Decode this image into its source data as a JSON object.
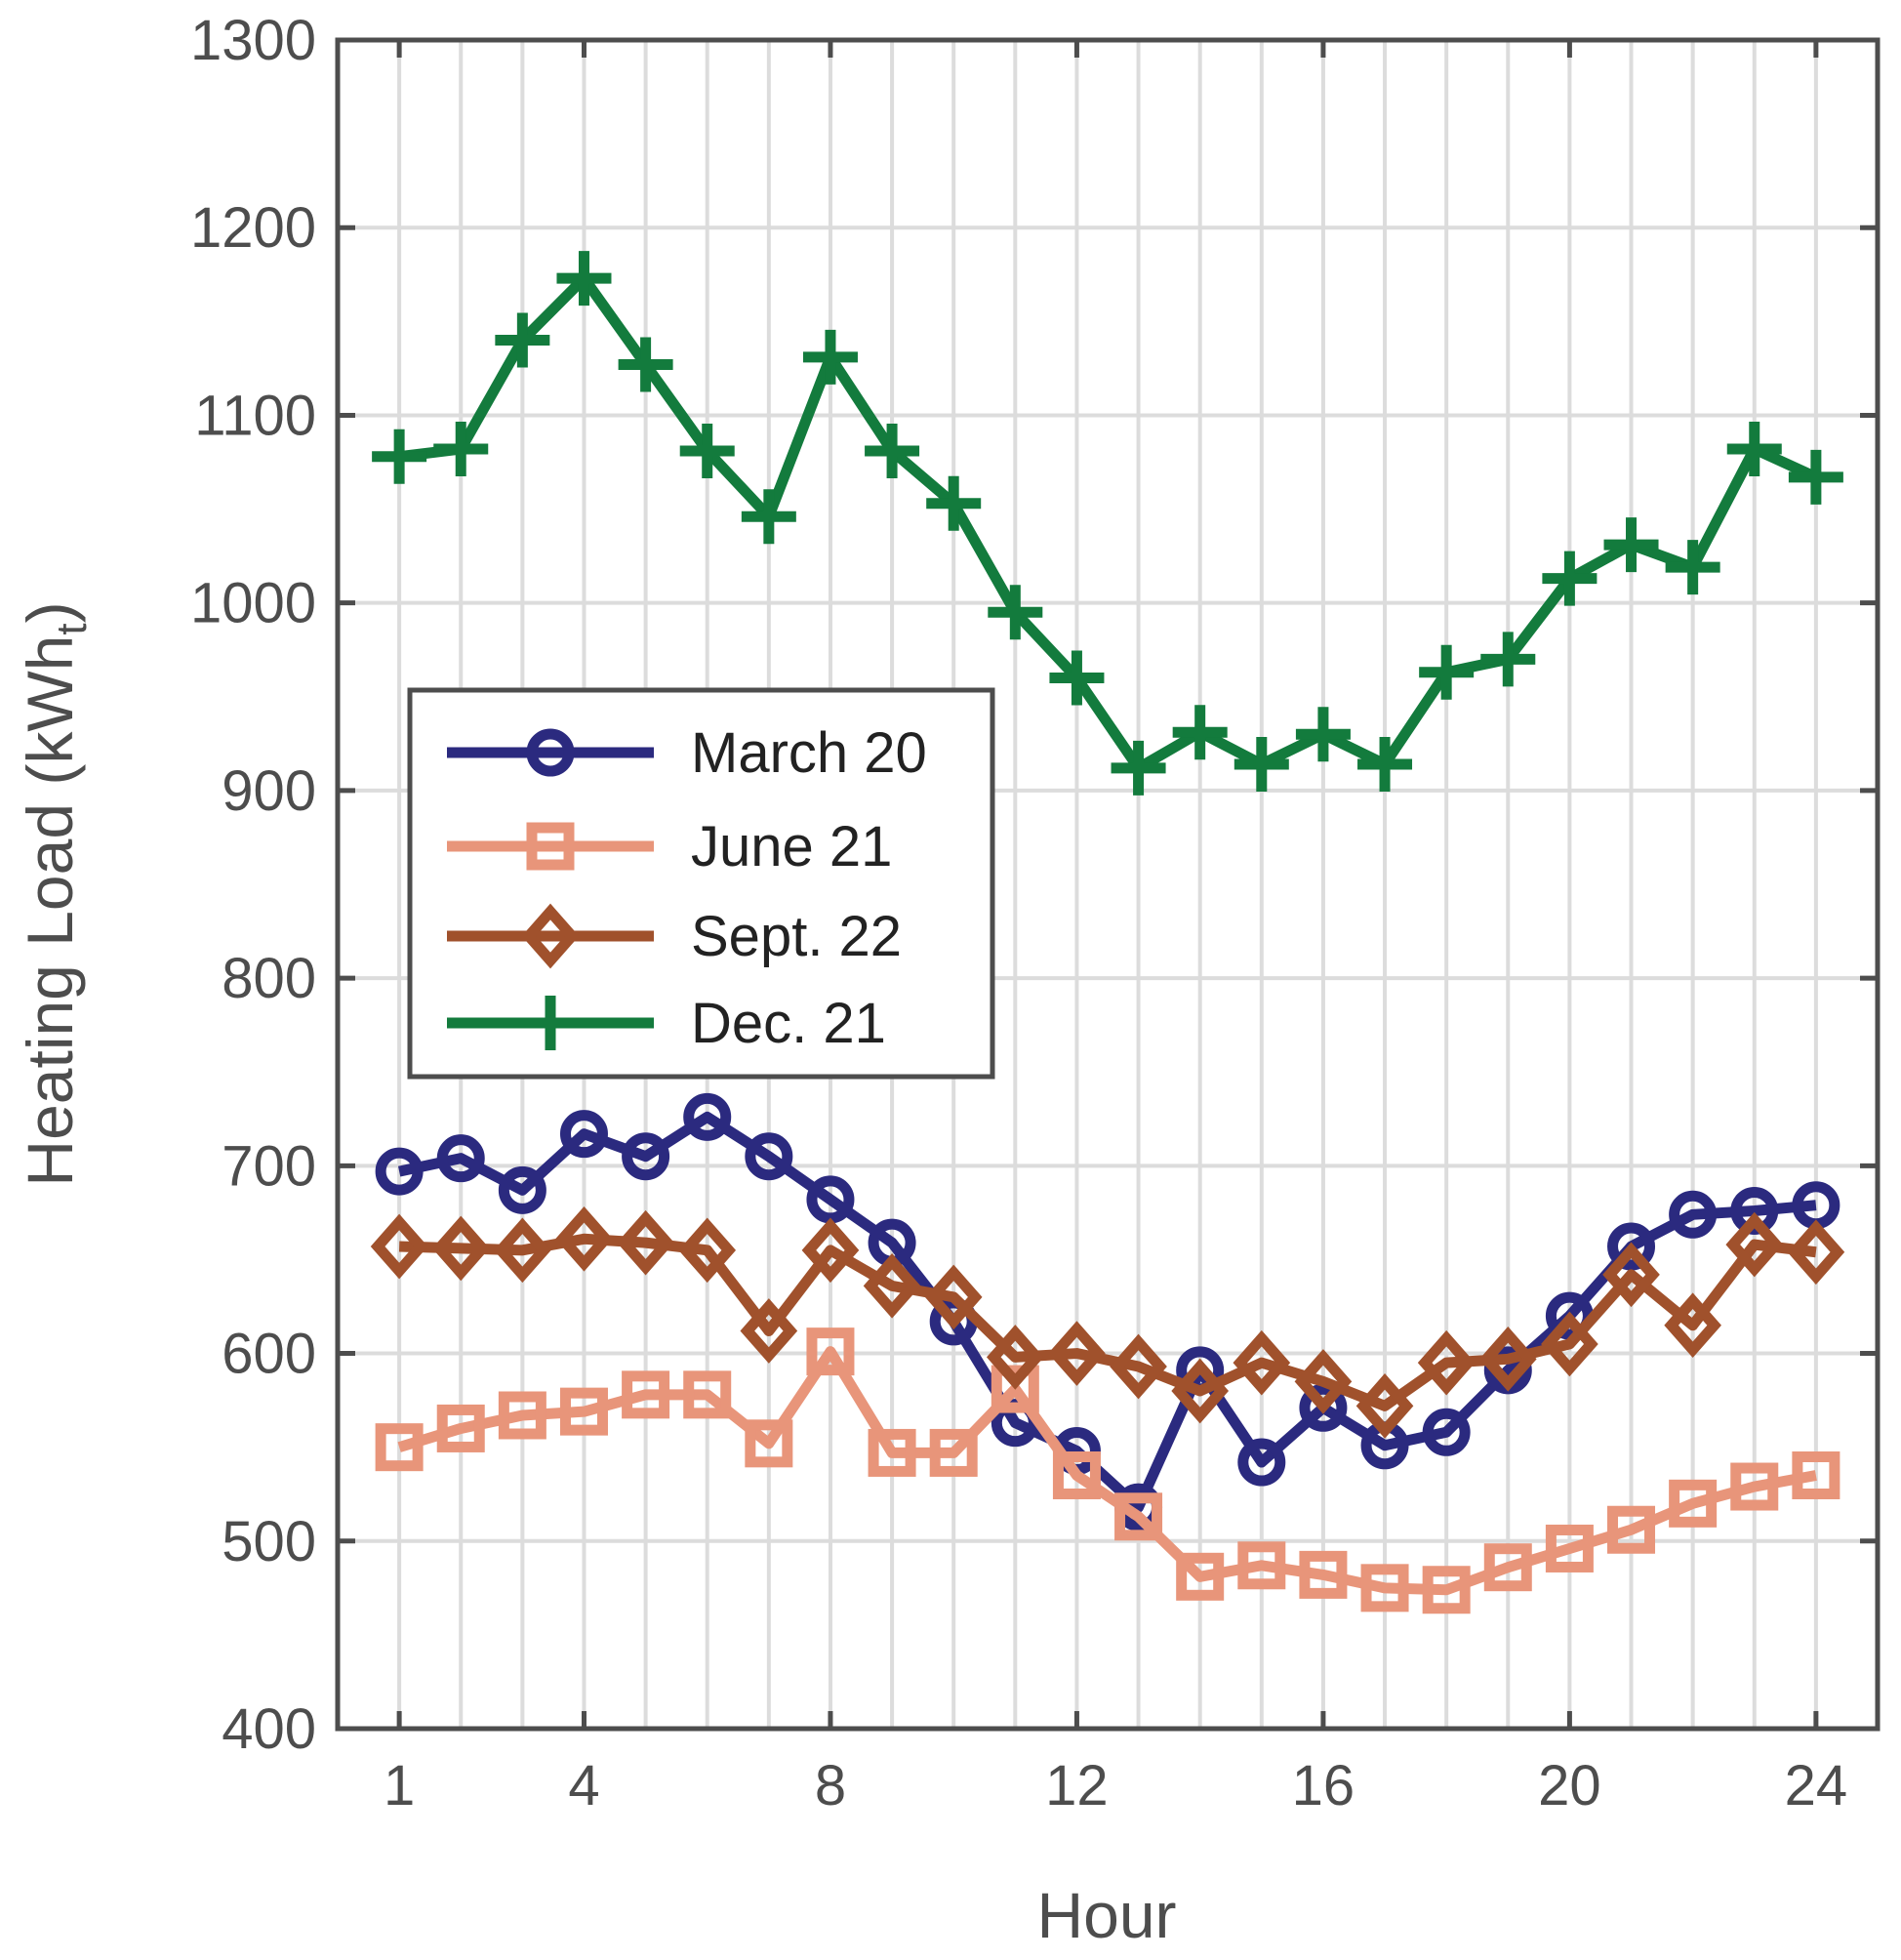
{
  "chart_data": {
    "type": "line",
    "title": "",
    "xlabel": "Hour",
    "ylabel": "Heating Load (kWh",
    "ylabel_subscript": "t",
    "ylabel_close": ")",
    "xlim": [
      0,
      25
    ],
    "ylim": [
      400,
      1300
    ],
    "x_ticks": [
      1,
      4,
      8,
      12,
      16,
      20,
      24
    ],
    "x_tick_labels": [
      "1",
      "4",
      "8",
      "12",
      "16",
      "20",
      "24"
    ],
    "y_ticks": [
      400,
      500,
      600,
      700,
      800,
      900,
      1000,
      1100,
      1200,
      1300
    ],
    "y_tick_labels": [
      "400",
      "500",
      "600",
      "700",
      "800",
      "900",
      "1000",
      "1100",
      "1200",
      "1300"
    ],
    "grid_x": [
      1,
      2,
      3,
      4,
      5,
      6,
      7,
      8,
      9,
      10,
      11,
      12,
      13,
      14,
      15,
      16,
      17,
      18,
      19,
      20,
      21,
      22,
      23,
      24
    ],
    "grid_y": [
      400,
      500,
      600,
      700,
      800,
      900,
      1000,
      1100,
      1200,
      1300
    ],
    "grid": true,
    "legend_position": "middle-left",
    "x": [
      1,
      2,
      3,
      4,
      5,
      6,
      7,
      8,
      9,
      10,
      11,
      12,
      13,
      14,
      15,
      16,
      17,
      18,
      19,
      20,
      21,
      22,
      23,
      24
    ],
    "series": [
      {
        "name": "March 20",
        "color": "#2b2a7f",
        "marker": "circle",
        "values": [
          697,
          704,
          687,
          717,
          705,
          726,
          705,
          682,
          659,
          617,
          563,
          548,
          518,
          591,
          542,
          571,
          551,
          558,
          591,
          620,
          657,
          674,
          676,
          679
        ]
      },
      {
        "name": "June 21",
        "color": "#e8957a",
        "marker": "square",
        "values": [
          550,
          560,
          567,
          569,
          578,
          578,
          552,
          601,
          547,
          547,
          581,
          535,
          513,
          481,
          487,
          482,
          475,
          474,
          486,
          496,
          506,
          520,
          529,
          535
        ]
      },
      {
        "name": "Sept. 22",
        "color": "#a0512c",
        "marker": "diamond",
        "values": [
          657,
          656,
          655,
          661,
          659,
          655,
          612,
          655,
          636,
          630,
          598,
          600,
          593,
          580,
          595,
          585,
          572,
          595,
          597,
          605,
          642,
          615,
          658,
          654
        ]
      },
      {
        "name": "Dec. 21",
        "color": "#137b3d",
        "marker": "plus",
        "values": [
          1078,
          1082,
          1140,
          1173,
          1127,
          1081,
          1046,
          1131,
          1081,
          1053,
          995,
          960,
          912,
          931,
          914,
          930,
          914,
          963,
          970,
          1013,
          1031,
          1019,
          1082,
          1067
        ]
      }
    ]
  }
}
